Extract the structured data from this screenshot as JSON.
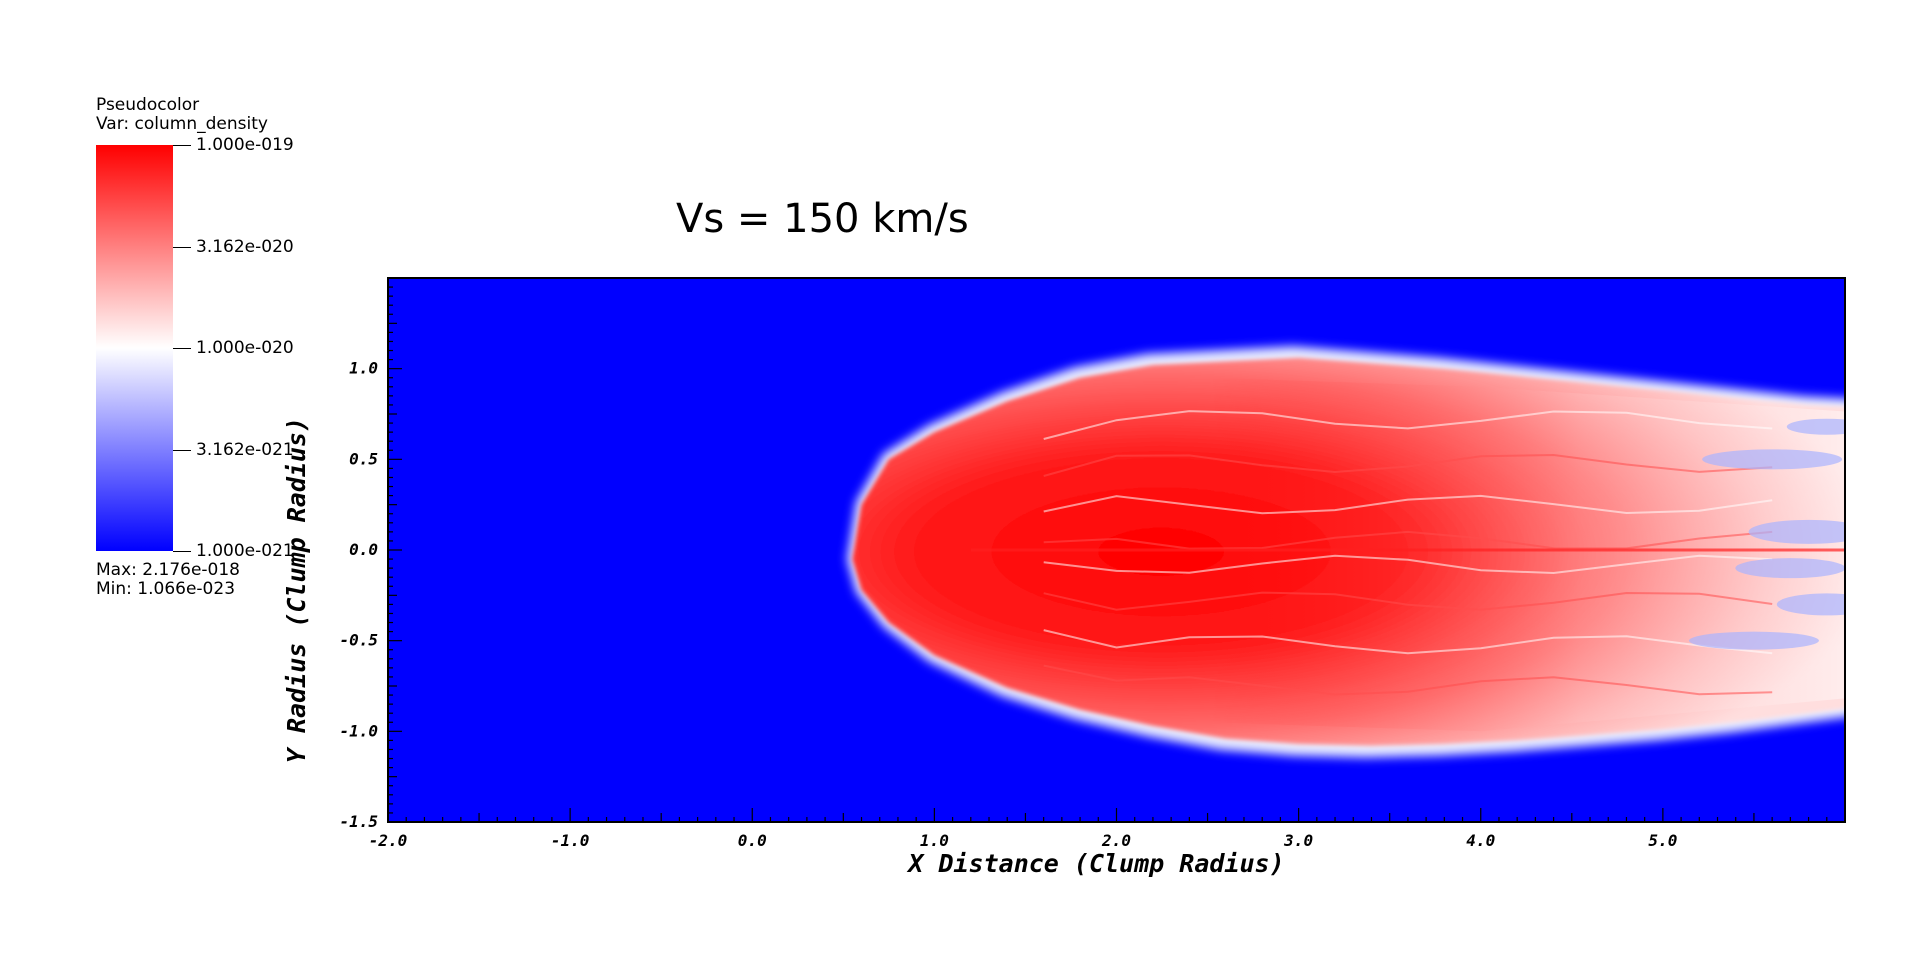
{
  "legend": {
    "title": "Pseudocolor",
    "var_label": "Var: column_density",
    "ticks": [
      "1.000e-019",
      "3.162e-020",
      "1.000e-020",
      "3.162e-021",
      "1.000e-021"
    ],
    "max_label": "Max:  2.176e-018",
    "min_label": "Min:  1.066e-023",
    "colors": {
      "high": "#ff0000",
      "mid": "#ffffff",
      "low": "#0000ff"
    }
  },
  "chart_data": {
    "type": "heatmap",
    "title": "Vs = 150 km/s",
    "xlabel": "X Distance (Clump Radius)",
    "ylabel": "Y Radius (Clump Radius)",
    "xlim": [
      -2.0,
      6.0
    ],
    "ylim": [
      -1.5,
      1.5
    ],
    "xticks": [
      "-2.0",
      "-1.0",
      "0.0",
      "1.0",
      "2.0",
      "3.0",
      "4.0",
      "5.0"
    ],
    "yticks": [
      "1.0",
      "0.5",
      "0.0",
      "-0.5",
      "-1.0",
      "-1.5"
    ],
    "scale": "log",
    "colorbar_range": [
      1e-21,
      1e-19
    ],
    "background_color": "#0000ff",
    "feature": "bow-shaped high-density clump centered near y = 0, leading edge at x ≈ 0.5, densest near x ≈ 1.0–2.0, extending to the right edge with a diffuse turbulent tail between y ≈ -1.1 and 1.1"
  }
}
